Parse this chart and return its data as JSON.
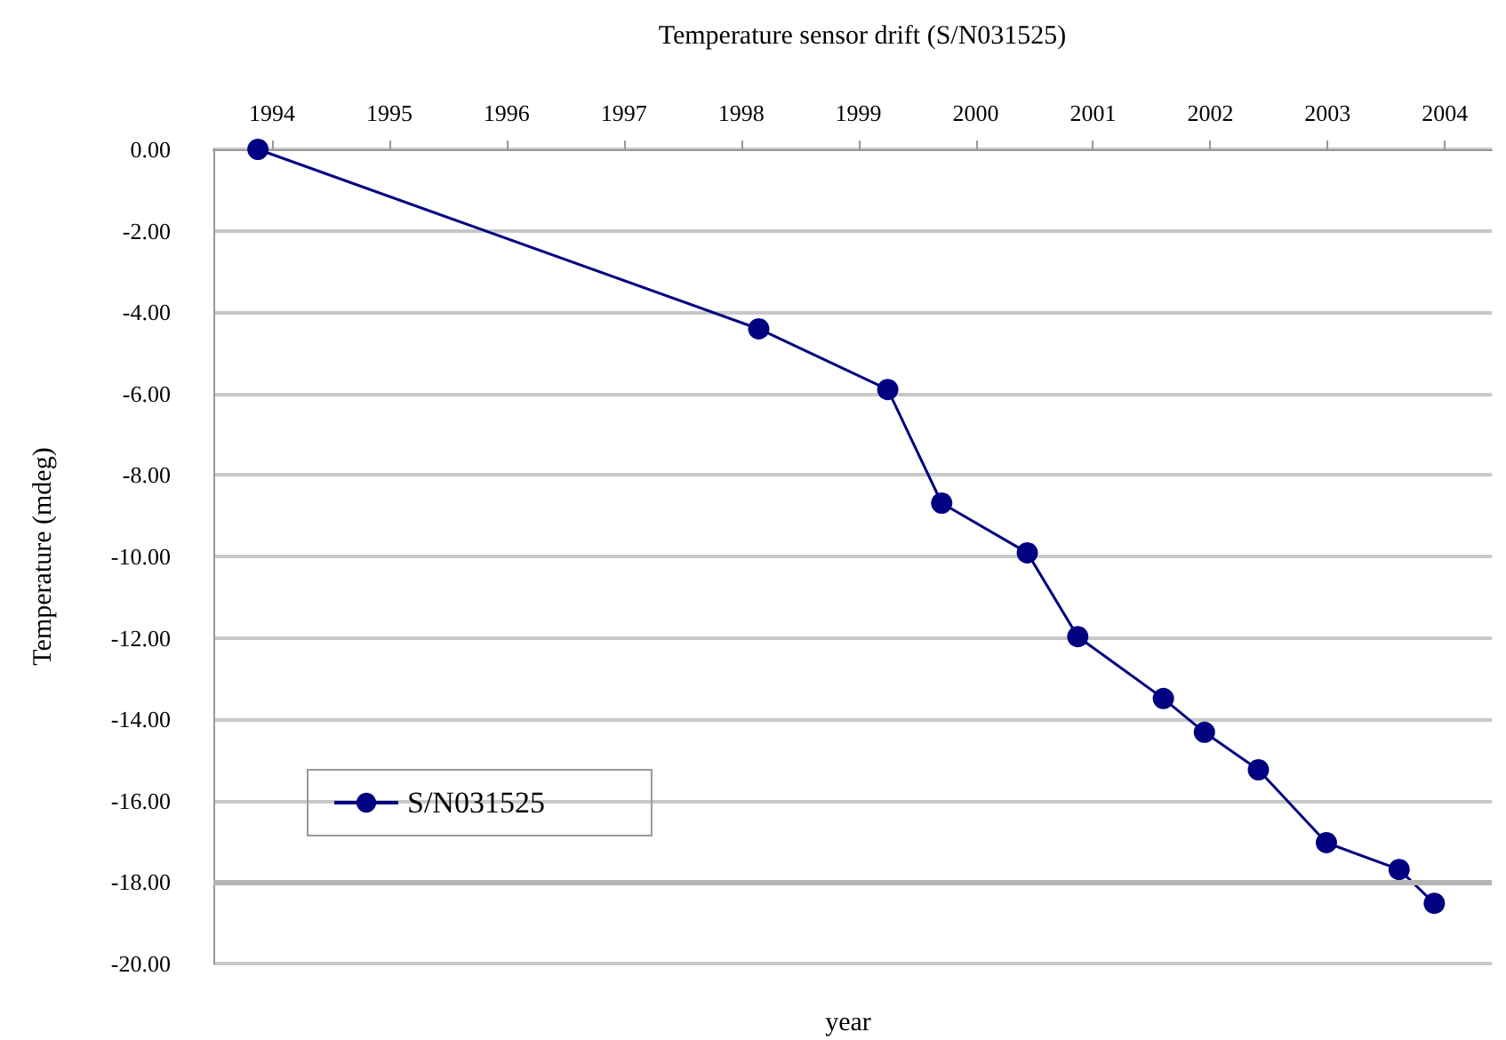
{
  "chart_data": {
    "type": "line",
    "title": "Temperature sensor drift (S/N031525)",
    "xlabel": "year",
    "ylabel": "Temperature (mdeg)",
    "x": [
      1993.88,
      1998.15,
      1999.25,
      1999.71,
      2000.44,
      2000.87,
      2001.6,
      2001.95,
      2002.41,
      2002.99,
      2003.61,
      2003.91
    ],
    "series": [
      {
        "name": "S/N031525",
        "color": "#000080",
        "values": [
          0,
          -4.41,
          -5.9,
          -8.69,
          -9.91,
          -11.97,
          -13.49,
          -14.32,
          -15.24,
          -17.03,
          -17.69,
          -18.52
        ]
      }
    ],
    "xlim": [
      1993.5,
      2004.4
    ],
    "xticks": [
      1994,
      1995,
      1996,
      1997,
      1998,
      1999,
      2000,
      2001,
      2002,
      2003,
      2004
    ],
    "ylim": [
      -20,
      0
    ],
    "yticks": [
      {
        "value": 0,
        "label": "0.00"
      },
      {
        "value": -2,
        "label": "-2.00"
      },
      {
        "value": -4,
        "label": "-4.00"
      },
      {
        "value": -6,
        "label": "-6.00"
      },
      {
        "value": -8,
        "label": "-8.00"
      },
      {
        "value": -10,
        "label": "-10.00"
      },
      {
        "value": -12,
        "label": "-12.00"
      },
      {
        "value": -14,
        "label": "-14.00"
      },
      {
        "value": -16,
        "label": "-16.00"
      },
      {
        "value": -18,
        "label": "-18.00"
      },
      {
        "value": -20,
        "label": "-20.00"
      }
    ],
    "ref_lines": [
      {
        "axis": "y",
        "value": -18,
        "color": "#b4b4b4"
      }
    ],
    "grid": "y",
    "legend": "bottom left",
    "marker": "circle",
    "line_style": "solid"
  }
}
